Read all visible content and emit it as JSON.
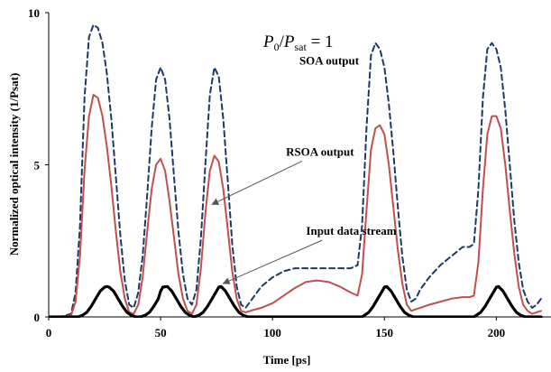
{
  "chart_data": {
    "type": "line",
    "title": "",
    "xlabel": "Time [ps]",
    "ylabel": "Normalized optical intensity (1/Psat)",
    "xlim": [
      0,
      220
    ],
    "ylim": [
      0,
      10
    ],
    "xticks": [
      0,
      50,
      100,
      150,
      200
    ],
    "yticks": [
      0,
      5,
      10
    ],
    "grid": false,
    "legend": "none",
    "formula": {
      "p": "P",
      "p_sub": "0",
      "slash": "/",
      "psat": "P",
      "psat_sub": "sat",
      "eq": " = 1"
    },
    "series": [
      {
        "name": "SOA output",
        "color": "#1f3864",
        "style": "dashed",
        "x": [
          0,
          5,
          10,
          12,
          14,
          16,
          18,
          20,
          22,
          24,
          26,
          28,
          30,
          32,
          34,
          36,
          38,
          40,
          42,
          44,
          46,
          48,
          50,
          52,
          54,
          56,
          58,
          60,
          62,
          64,
          66,
          68,
          70,
          72,
          74,
          76,
          78,
          80,
          82,
          84,
          86,
          88,
          90,
          95,
          100,
          105,
          110,
          115,
          120,
          125,
          130,
          135,
          138,
          140,
          142,
          144,
          146,
          148,
          150,
          152,
          154,
          156,
          158,
          160,
          162,
          164,
          166,
          170,
          175,
          180,
          185,
          188,
          190,
          192,
          194,
          196,
          198,
          200,
          202,
          204,
          206,
          208,
          210,
          212,
          214,
          216,
          218,
          220
        ],
        "y": [
          0,
          0,
          0.1,
          0.8,
          3.0,
          7.2,
          9.2,
          9.6,
          9.5,
          9.0,
          8.0,
          6.5,
          4.6,
          2.7,
          1.2,
          0.4,
          0.3,
          0.8,
          2.0,
          4.0,
          6.2,
          7.8,
          8.2,
          7.8,
          6.5,
          4.6,
          2.8,
          1.4,
          0.6,
          0.4,
          0.9,
          2.6,
          5.0,
          7.3,
          8.2,
          7.9,
          6.5,
          4.5,
          2.4,
          1.0,
          0.4,
          0.3,
          0.5,
          1.0,
          1.3,
          1.5,
          1.6,
          1.6,
          1.6,
          1.6,
          1.6,
          1.6,
          1.7,
          3.0,
          6.2,
          8.6,
          9.0,
          8.8,
          8.2,
          7.0,
          5.4,
          3.6,
          2.0,
          0.9,
          0.5,
          0.6,
          0.9,
          1.3,
          1.7,
          2.0,
          2.3,
          2.3,
          2.4,
          4.2,
          7.2,
          8.8,
          9.0,
          8.8,
          8.2,
          6.8,
          5.0,
          3.2,
          1.8,
          0.9,
          0.5,
          0.3,
          0.4,
          0.6
        ]
      },
      {
        "name": "RSOA output",
        "color": "#c0504d",
        "style": "solid",
        "x": [
          0,
          5,
          10,
          12,
          14,
          16,
          18,
          20,
          22,
          24,
          26,
          28,
          30,
          32,
          34,
          36,
          38,
          40,
          42,
          44,
          46,
          48,
          50,
          52,
          54,
          56,
          58,
          60,
          62,
          64,
          66,
          68,
          70,
          72,
          74,
          76,
          78,
          80,
          82,
          84,
          86,
          88,
          90,
          95,
          100,
          105,
          110,
          115,
          120,
          125,
          130,
          135,
          138,
          140,
          142,
          144,
          146,
          148,
          150,
          152,
          154,
          156,
          158,
          160,
          162,
          164,
          166,
          170,
          175,
          180,
          185,
          188,
          190,
          192,
          194,
          196,
          198,
          200,
          202,
          204,
          206,
          208,
          210,
          212,
          214,
          216,
          218,
          220
        ],
        "y": [
          0,
          0,
          0.05,
          0.5,
          2.0,
          4.8,
          6.6,
          7.3,
          7.2,
          6.6,
          5.6,
          4.3,
          2.8,
          1.5,
          0.6,
          0.15,
          0.1,
          0.4,
          1.3,
          2.8,
          4.2,
          5.0,
          5.2,
          4.8,
          3.8,
          2.6,
          1.4,
          0.6,
          0.2,
          0.1,
          0.4,
          1.6,
          3.4,
          4.8,
          5.3,
          5.1,
          4.2,
          2.9,
          1.5,
          0.6,
          0.2,
          0.15,
          0.2,
          0.3,
          0.45,
          0.7,
          0.95,
          1.15,
          1.2,
          1.15,
          1.0,
          0.8,
          0.7,
          1.4,
          3.5,
          5.5,
          6.2,
          6.3,
          6.0,
          5.0,
          3.6,
          2.2,
          1.1,
          0.4,
          0.2,
          0.25,
          0.3,
          0.4,
          0.5,
          0.6,
          0.65,
          0.65,
          0.7,
          1.8,
          4.2,
          6.0,
          6.6,
          6.6,
          6.2,
          5.0,
          3.5,
          2.1,
          1.0,
          0.4,
          0.2,
          0.1,
          0.15,
          0.2
        ]
      },
      {
        "name": "Input data stream",
        "color": "#000000",
        "style": "solid",
        "x": [
          0,
          10,
          13,
          15,
          17,
          19,
          21,
          23,
          25,
          26,
          27,
          29,
          31,
          33,
          35,
          37,
          39,
          41,
          43,
          45,
          47,
          49,
          50,
          51,
          53,
          55,
          57,
          59,
          61,
          63,
          65,
          67,
          69,
          71,
          73,
          75,
          76,
          77,
          79,
          81,
          83,
          85,
          87,
          89,
          140,
          141,
          143,
          145,
          147,
          149,
          150,
          151,
          153,
          155,
          157,
          159,
          161,
          163,
          190,
          191,
          193,
          195,
          197,
          199,
          200,
          201,
          203,
          205,
          207,
          209,
          211,
          213,
          220
        ],
        "y": [
          0,
          0,
          0,
          0.05,
          0.15,
          0.35,
          0.6,
          0.85,
          0.98,
          1.0,
          0.98,
          0.85,
          0.6,
          0.35,
          0.15,
          0.05,
          0,
          0,
          0.05,
          0.15,
          0.35,
          0.6,
          0.85,
          0.98,
          1.0,
          0.85,
          0.6,
          0.35,
          0.15,
          0.05,
          0,
          0.05,
          0.15,
          0.35,
          0.6,
          0.85,
          0.98,
          1.0,
          0.85,
          0.6,
          0.35,
          0.15,
          0.05,
          0,
          0,
          0.05,
          0.15,
          0.35,
          0.6,
          0.85,
          0.98,
          1.0,
          0.85,
          0.6,
          0.35,
          0.15,
          0.05,
          0,
          0,
          0.05,
          0.15,
          0.35,
          0.6,
          0.85,
          0.98,
          1.0,
          0.85,
          0.6,
          0.35,
          0.15,
          0.05,
          0,
          0
        ]
      }
    ],
    "annotations": [
      {
        "text": "SOA output",
        "x": 112,
        "y": 8.3,
        "arrow": false
      },
      {
        "text": "RSOA output",
        "x": 106,
        "y": 5.3,
        "arrow_to": [
          73,
          3.7
        ]
      },
      {
        "text": "Input data stream",
        "x": 115,
        "y": 2.7,
        "arrow_to": [
          78,
          1.1
        ]
      }
    ]
  }
}
